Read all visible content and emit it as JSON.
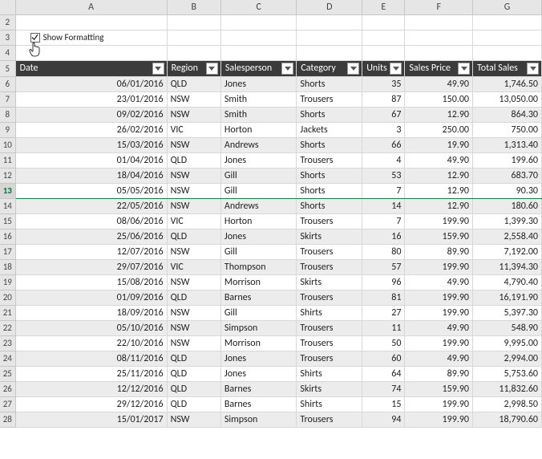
{
  "columns": {
    "letters": [
      "A",
      "B",
      "C",
      "D",
      "E",
      "F",
      "G"
    ],
    "widths": [
      104,
      80,
      110,
      100,
      58,
      96,
      100
    ]
  },
  "checkbox": {
    "label": "Show Formatting",
    "checked": true
  },
  "rowNumbers": [
    2,
    3,
    4,
    5,
    6,
    7,
    8,
    9,
    10,
    11,
    12,
    13,
    14,
    15,
    16,
    17,
    18,
    19,
    20,
    21,
    22,
    23,
    24,
    25,
    26,
    27,
    28
  ],
  "selectedRow": 13,
  "headers": [
    "Date",
    "Region",
    "Salesperson",
    "Category",
    "Units",
    "Sales Price",
    "Total Sales"
  ],
  "align": [
    "r",
    "l",
    "l",
    "l",
    "r",
    "r",
    "r"
  ],
  "rows": [
    [
      "06/01/2016",
      "QLD",
      "Jones",
      "Shorts",
      "35",
      "49.90",
      "1,746.50"
    ],
    [
      "23/01/2016",
      "NSW",
      "Smith",
      "Trousers",
      "87",
      "150.00",
      "13,050.00"
    ],
    [
      "09/02/2016",
      "NSW",
      "Smith",
      "Shorts",
      "67",
      "12.90",
      "864.30"
    ],
    [
      "26/02/2016",
      "VIC",
      "Horton",
      "Jackets",
      "3",
      "250.00",
      "750.00"
    ],
    [
      "15/03/2016",
      "NSW",
      "Andrews",
      "Shorts",
      "66",
      "19.90",
      "1,313.40"
    ],
    [
      "01/04/2016",
      "QLD",
      "Jones",
      "Trousers",
      "4",
      "49.90",
      "199.60"
    ],
    [
      "18/04/2016",
      "NSW",
      "Gill",
      "Shorts",
      "53",
      "12.90",
      "683.70"
    ],
    [
      "05/05/2016",
      "NSW",
      "Gill",
      "Shorts",
      "7",
      "12.90",
      "90.30"
    ],
    [
      "22/05/2016",
      "NSW",
      "Andrews",
      "Shorts",
      "14",
      "12.90",
      "180.60"
    ],
    [
      "08/06/2016",
      "VIC",
      "Horton",
      "Trousers",
      "7",
      "199.90",
      "1,399.30"
    ],
    [
      "25/06/2016",
      "QLD",
      "Jones",
      "Skirts",
      "16",
      "159.90",
      "2,558.40"
    ],
    [
      "12/07/2016",
      "NSW",
      "Gill",
      "Trousers",
      "80",
      "89.90",
      "7,192.00"
    ],
    [
      "29/07/2016",
      "VIC",
      "Thompson",
      "Trousers",
      "57",
      "199.90",
      "11,394.30"
    ],
    [
      "15/08/2016",
      "NSW",
      "Morrison",
      "Skirts",
      "96",
      "49.90",
      "4,790.40"
    ],
    [
      "01/09/2016",
      "QLD",
      "Barnes",
      "Trousers",
      "81",
      "199.90",
      "16,191.90"
    ],
    [
      "18/09/2016",
      "NSW",
      "Gill",
      "Shirts",
      "27",
      "199.90",
      "5,397.30"
    ],
    [
      "05/10/2016",
      "NSW",
      "Simpson",
      "Trousers",
      "11",
      "49.90",
      "548.90"
    ],
    [
      "22/10/2016",
      "NSW",
      "Morrison",
      "Trousers",
      "50",
      "199.90",
      "9,995.00"
    ],
    [
      "08/11/2016",
      "QLD",
      "Jones",
      "Trousers",
      "60",
      "49.90",
      "2,994.00"
    ],
    [
      "25/11/2016",
      "QLD",
      "Jones",
      "Shirts",
      "64",
      "89.90",
      "5,753.60"
    ],
    [
      "12/12/2016",
      "QLD",
      "Barnes",
      "Skirts",
      "74",
      "159.90",
      "11,832.60"
    ],
    [
      "29/12/2016",
      "QLD",
      "Barnes",
      "Shirts",
      "15",
      "199.90",
      "2,998.50"
    ],
    [
      "15/01/2017",
      "NSW",
      "Simpson",
      "Trousers",
      "94",
      "199.90",
      "18,790.60"
    ]
  ]
}
